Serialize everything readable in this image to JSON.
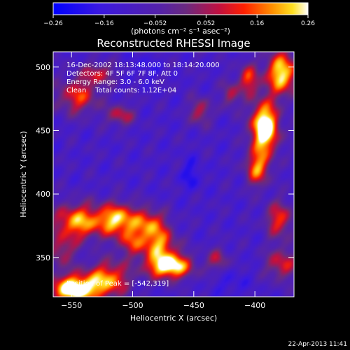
{
  "chart_data": {
    "type": "heatmap",
    "title": "Reconstructed RHESSI Image",
    "xlabel": "Heliocentric X (arcsec)",
    "ylabel": "Heliocentric Y (arcsec)",
    "xlim": [
      -565,
      -368
    ],
    "ylim": [
      319,
      512
    ],
    "x_ticks": [
      {
        "value": -550,
        "label": "−550"
      },
      {
        "value": -500,
        "label": "−500"
      },
      {
        "value": -450,
        "label": "−450"
      },
      {
        "value": -400,
        "label": "−400"
      }
    ],
    "y_ticks": [
      {
        "value": 350,
        "label": "350"
      },
      {
        "value": 400,
        "label": "400"
      },
      {
        "value": 450,
        "label": "450"
      },
      {
        "value": 500,
        "label": "500"
      }
    ],
    "colorbar": {
      "range": [
        -0.26,
        0.26
      ],
      "ticks": [
        {
          "value": -0.26,
          "label": "−0.26"
        },
        {
          "value": -0.156,
          "label": "−0.16"
        },
        {
          "value": -0.052,
          "label": "−0.052"
        },
        {
          "value": 0.052,
          "label": "0.052"
        },
        {
          "value": 0.156,
          "label": "0.16"
        },
        {
          "value": 0.26,
          "label": "0.26"
        }
      ],
      "unit_label": "(photons cm⁻² s⁻¹ asec⁻²)"
    },
    "annotations": [
      "16-Dec-2002 18:13:48.000 to 18:14:20.000",
      "Detectors: 4F 5F 6F 7F 8F, Att 0",
      "Energy Range: 3.0 - 6.0 keV",
      "Clean    Total counts: 1.12E+04"
    ],
    "peak_label": "Position of Peak = [-542,319]",
    "background_level": -0.1,
    "blobs": [
      {
        "x": -548,
        "y": 325,
        "sx": 14,
        "sy": 8,
        "a": 0.42
      },
      {
        "x": -520,
        "y": 333,
        "sx": 12,
        "sy": 10,
        "a": 0.28
      },
      {
        "x": -470,
        "y": 343,
        "sx": 13,
        "sy": 7,
        "a": 0.4
      },
      {
        "x": -478,
        "y": 360,
        "sx": 10,
        "sy": 9,
        "a": 0.26
      },
      {
        "x": -545,
        "y": 378,
        "sx": 14,
        "sy": 10,
        "a": 0.3
      },
      {
        "x": -512,
        "y": 380,
        "sx": 12,
        "sy": 9,
        "a": 0.32
      },
      {
        "x": -485,
        "y": 377,
        "sx": 9,
        "sy": 8,
        "a": 0.22
      },
      {
        "x": -500,
        "y": 362,
        "sx": 9,
        "sy": 8,
        "a": 0.18
      },
      {
        "x": -558,
        "y": 355,
        "sx": 8,
        "sy": 9,
        "a": 0.16
      },
      {
        "x": -392,
        "y": 452,
        "sx": 8,
        "sy": 14,
        "a": 0.46
      },
      {
        "x": -378,
        "y": 495,
        "sx": 9,
        "sy": 12,
        "a": 0.36
      },
      {
        "x": -398,
        "y": 420,
        "sx": 7,
        "sy": 10,
        "a": 0.26
      },
      {
        "x": -380,
        "y": 380,
        "sx": 8,
        "sy": 10,
        "a": 0.22
      },
      {
        "x": -378,
        "y": 345,
        "sx": 9,
        "sy": 9,
        "a": 0.2
      },
      {
        "x": -405,
        "y": 490,
        "sx": 6,
        "sy": 9,
        "a": 0.22
      },
      {
        "x": -545,
        "y": 477,
        "sx": 12,
        "sy": 10,
        "a": 0.22
      },
      {
        "x": -510,
        "y": 462,
        "sx": 8,
        "sy": 6,
        "a": 0.18
      },
      {
        "x": -528,
        "y": 495,
        "sx": 9,
        "sy": 6,
        "a": 0.18
      },
      {
        "x": -445,
        "y": 465,
        "sx": 6,
        "sy": 8,
        "a": 0.18
      },
      {
        "x": -420,
        "y": 478,
        "sx": 5,
        "sy": 8,
        "a": 0.16
      },
      {
        "x": -430,
        "y": 348,
        "sx": 6,
        "sy": 7,
        "a": 0.16
      },
      {
        "x": -452,
        "y": 415,
        "sx": 6,
        "sy": 9,
        "a": -0.1
      },
      {
        "x": -490,
        "y": 500,
        "sx": 9,
        "sy": 8,
        "a": -0.06
      },
      {
        "x": -420,
        "y": 330,
        "sx": 10,
        "sy": 8,
        "a": -0.06
      }
    ]
  },
  "footer": {
    "timestamp": "22-Apr-2013 11:41"
  }
}
